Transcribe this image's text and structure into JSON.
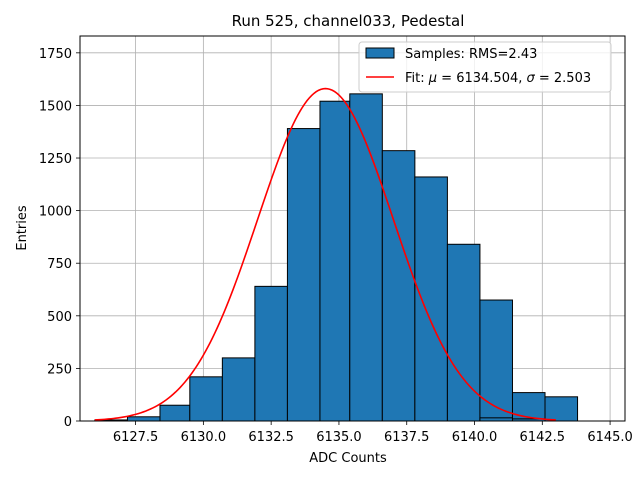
{
  "chart_data": {
    "type": "histogram",
    "title": "Run 525, channel033, Pedestal",
    "xlabel": "ADC Counts",
    "ylabel": "Entries",
    "xlim": [
      6125.45,
      6145.55
    ],
    "ylim": [
      0,
      1830
    ],
    "grid": true,
    "x_ticks": [
      6127.5,
      6130.0,
      6132.5,
      6135.0,
      6137.5,
      6140.0,
      6142.5,
      6145.0
    ],
    "x_tick_labels": [
      "6127.5",
      "6130.0",
      "6132.5",
      "6135.0",
      "6137.5",
      "6140.0",
      "6142.5",
      "6145.0"
    ],
    "y_ticks": [
      0,
      250,
      500,
      750,
      1000,
      1250,
      1500,
      1750
    ],
    "y_tick_labels": [
      "0",
      "250",
      "500",
      "750",
      "1000",
      "1250",
      "1500",
      "1750"
    ],
    "bins": [
      {
        "x0": 6126.0,
        "x1": 6127.2,
        "count": 5
      },
      {
        "x0": 6127.2,
        "x1": 6128.4,
        "count": 20
      },
      {
        "x0": 6128.4,
        "x1": 6129.5,
        "count": 75
      },
      {
        "x0": 6129.5,
        "x1": 6130.7,
        "count": 210
      },
      {
        "x0": 6130.7,
        "x1": 6131.9,
        "count": 300
      },
      {
        "x0": 6131.9,
        "x1": 6133.1,
        "count": 640
      },
      {
        "x0": 6133.1,
        "x1": 6134.3,
        "count": 1390
      },
      {
        "x0": 6134.3,
        "x1": 6135.4,
        "count": 1520
      },
      {
        "x0": 6135.4,
        "x1": 6136.6,
        "count": 1555
      },
      {
        "x0": 6136.6,
        "x1": 6137.8,
        "count": 1285
      },
      {
        "x0": 6137.8,
        "x1": 6139.0,
        "count": 1160
      },
      {
        "x0": 6139.0,
        "x1": 6140.2,
        "count": 840
      },
      {
        "x0": 6140.2,
        "x1": 6141.4,
        "count": 575
      },
      {
        "x0": 6141.4,
        "x1": 6142.6,
        "count": 135
      },
      {
        "x0": 6142.6,
        "x1": 6143.8,
        "count": 115
      }
    ],
    "extra_bins": [
      {
        "x0": 6140.2,
        "x1": 6141.4,
        "count": 15
      },
      {
        "x0": 6141.4,
        "x1": 6142.6,
        "count": 10
      }
    ],
    "fit": {
      "mu": 6134.504,
      "sigma": 2.503,
      "amplitude": 1580,
      "x_start": 6126.0,
      "x_end": 6143.0
    },
    "legend": [
      {
        "label": "Samples: RMS=2.43",
        "kind": "patch",
        "color": "#1f77b4"
      },
      {
        "label_prefix": "Fit: ",
        "label_mu_sym": "μ",
        "label_mu": " = 6134.504, ",
        "label_sigma_sym": "σ",
        "label_sigma": " = 2.503",
        "kind": "line",
        "color": "#ff0000"
      }
    ],
    "colors": {
      "bar": "#1f77b4",
      "bar_edge": "#000000",
      "fit": "#ff0000",
      "grid": "#b0b0b0"
    }
  }
}
